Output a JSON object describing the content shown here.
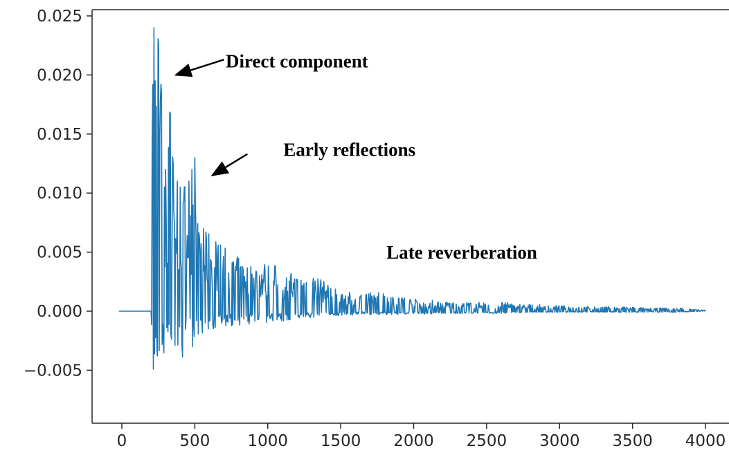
{
  "chart_data": {
    "type": "line",
    "title": "",
    "xlabel": "",
    "ylabel": "",
    "xlim": [
      -200,
      4200
    ],
    "ylim": [
      -0.0078,
      0.0252
    ],
    "grid": false,
    "legend": "none",
    "series_color": "#1f77b4",
    "x_ticks": [
      0,
      500,
      1000,
      1500,
      2000,
      2500,
      3000,
      3500,
      4000
    ],
    "x_tick_labels": [
      "0",
      "500",
      "1000",
      "1500",
      "2000",
      "2500",
      "3000",
      "3500",
      "4000"
    ],
    "y_ticks": [
      -0.005,
      0.0,
      0.005,
      0.01,
      0.015,
      0.02,
      0.025
    ],
    "y_tick_labels": [
      "−0.005",
      "0.000",
      "0.005",
      "0.010",
      "0.015",
      "0.020",
      "0.025"
    ],
    "envelope": {
      "x": [
        200,
        210,
        220,
        250,
        270,
        300,
        330,
        350,
        380,
        400,
        430,
        460,
        480,
        500,
        530,
        560,
        600,
        650,
        700,
        800,
        900,
        1000,
        1100,
        1200,
        1300,
        1400,
        1500,
        1600,
        1800,
        2000,
        2200,
        2400,
        2600,
        2800,
        3000,
        3200,
        3400,
        3600,
        3800,
        4000
      ],
      "max": [
        0.0,
        0.018,
        0.024,
        0.023,
        0.0188,
        0.012,
        0.0172,
        0.0126,
        0.011,
        0.0105,
        0.0105,
        0.011,
        0.012,
        0.013,
        0.0062,
        0.007,
        0.0072,
        0.0065,
        0.0058,
        0.0048,
        0.0042,
        0.0045,
        0.0038,
        0.0032,
        0.0036,
        0.0025,
        0.0018,
        0.0016,
        0.0018,
        0.0011,
        0.0009,
        0.0008,
        0.0008,
        0.0006,
        0.0005,
        0.0004,
        0.0004,
        0.0003,
        0.0003,
        0.0001
      ],
      "min": [
        0.0,
        -0.0078,
        -0.005,
        -0.0038,
        -0.003,
        -0.0042,
        -0.0032,
        -0.0044,
        -0.0032,
        -0.0043,
        -0.004,
        -0.0032,
        -0.003,
        -0.0034,
        -0.0018,
        -0.0021,
        -0.0024,
        -0.0015,
        -0.0013,
        -0.0013,
        -0.0011,
        -0.001,
        -0.0009,
        -0.0007,
        -0.0006,
        -0.0005,
        -0.0004,
        -0.0003,
        -0.0003,
        -0.0003,
        -0.0002,
        -0.0002,
        -0.0002,
        -0.0001,
        -0.0001,
        -0.0001,
        -0.0001,
        -0.0001,
        -0.0001,
        0.0
      ]
    },
    "flat_start": [
      -20,
      200
    ],
    "annotations": [
      {
        "text": "Direct component",
        "x": 1200,
        "y": 0.021,
        "arrow_from": [
          700,
          0.0213
        ],
        "arrow_to": [
          370,
          0.02
        ]
      },
      {
        "text": "Early reflections",
        "x": 1560,
        "y": 0.0135,
        "arrow_from": [
          860,
          0.0133
        ],
        "arrow_to": [
          620,
          0.0115
        ]
      },
      {
        "text": "Late reverberation",
        "x": 2330,
        "y": 0.0048
      }
    ]
  }
}
